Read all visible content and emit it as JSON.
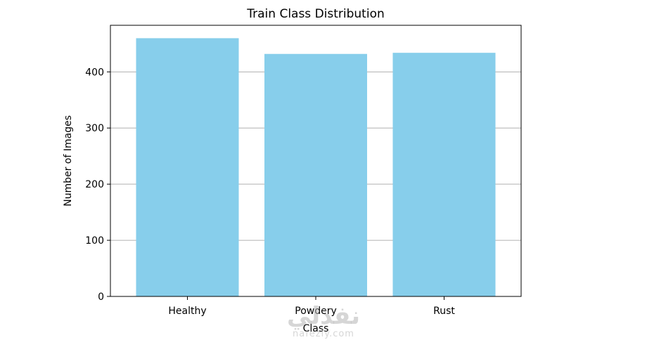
{
  "chart_data": {
    "type": "bar",
    "title": "Train Class Distribution",
    "xlabel": "Class",
    "ylabel": "Number of Images",
    "categories": [
      "Healthy",
      "Powdery",
      "Rust"
    ],
    "values": [
      460,
      432,
      434
    ],
    "ylim": [
      0,
      483
    ],
    "yticks": [
      0,
      100,
      200,
      300,
      400
    ],
    "grid": "y",
    "bar_color": "#87CEEB"
  },
  "watermark": {
    "glyph": "نفذلي",
    "url": "nafezly.com"
  }
}
